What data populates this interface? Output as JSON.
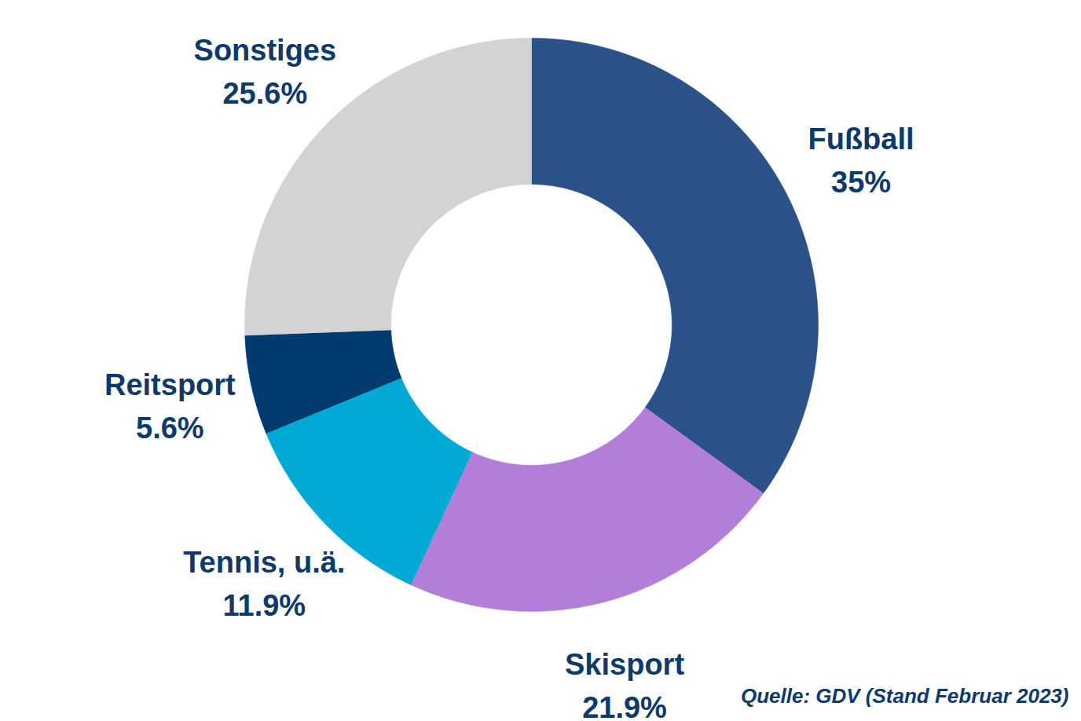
{
  "chart_data": {
    "type": "donut",
    "categories": [
      "Fußball",
      "Skisport",
      "Tennis, u.ä.",
      "Reitsport",
      "Sonstiges"
    ],
    "values": [
      35,
      21.9,
      11.9,
      5.6,
      25.6
    ],
    "value_labels": [
      "35%",
      "21.9%",
      "11.9%",
      "5.6%",
      "25.6%"
    ],
    "colors": [
      "#2a5288",
      "#b27ed9",
      "#00aad5",
      "#003a6e",
      "#d3d3d3"
    ],
    "data_labels": true,
    "tick_labels": false,
    "caption": "Quelle: GDV (Stand Februar 2023)"
  }
}
